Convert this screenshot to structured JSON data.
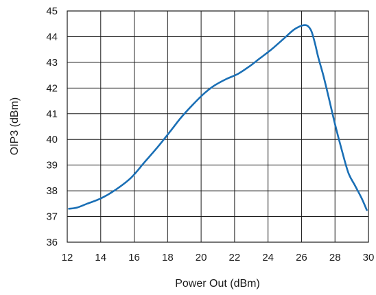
{
  "chart_data": {
    "type": "line",
    "title": "",
    "xlabel": "Power Out (dBm)",
    "ylabel": "OIP3 (dBm)",
    "xlim": [
      12,
      30
    ],
    "ylim": [
      36,
      45
    ],
    "x_ticks": [
      12,
      14,
      16,
      18,
      20,
      22,
      24,
      26,
      28,
      30
    ],
    "y_ticks": [
      36,
      37,
      38,
      39,
      40,
      41,
      42,
      43,
      44,
      45
    ],
    "grid": true,
    "legend": "none",
    "series": [
      {
        "color": "#1a6fb5",
        "x": [
          12.1,
          12.6,
          13.2,
          14.0,
          14.8,
          15.8,
          16.6,
          17.4,
          18.2,
          18.8,
          19.5,
          20.2,
          20.8,
          21.5,
          22.2,
          22.9,
          23.5,
          24.2,
          24.9,
          25.5,
          25.9,
          26.2,
          26.4,
          26.6,
          26.8,
          27.0,
          27.3,
          27.6,
          28.0,
          28.4,
          28.8,
          29.2,
          29.6,
          29.9
        ],
        "y": [
          37.3,
          37.35,
          37.5,
          37.7,
          38.0,
          38.5,
          39.1,
          39.7,
          40.35,
          40.85,
          41.35,
          41.8,
          42.1,
          42.35,
          42.55,
          42.85,
          43.15,
          43.5,
          43.9,
          44.25,
          44.4,
          44.45,
          44.4,
          44.2,
          43.75,
          43.2,
          42.5,
          41.7,
          40.6,
          39.6,
          38.7,
          38.2,
          37.7,
          37.25
        ]
      }
    ]
  }
}
